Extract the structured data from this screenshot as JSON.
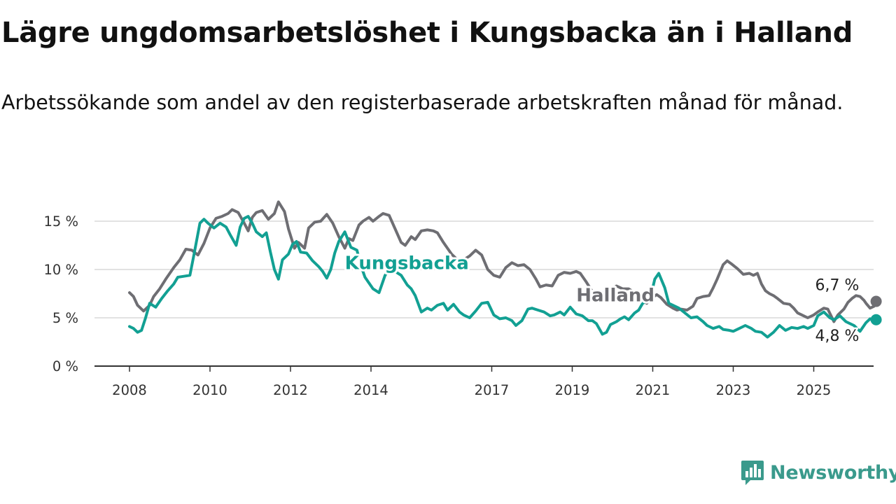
{
  "title": "Lägre ungdomsarbetslöshet i Kungsbacka än i Halland",
  "subtitle": "Arbetssökande som andel av den registerbaserade arbetskraften månad för månad.",
  "brand": {
    "name": "Newsworthy",
    "icon": "newsworthy-logo-icon",
    "color": "#3a9a8c"
  },
  "chart_data": {
    "type": "line",
    "title": "Lägre ungdomsarbetslöshet i Kungsbacka än i Halland",
    "subtitle": "Arbetssökande som andel av den registerbaserade arbetskraften månad för månad.",
    "xlabel": "",
    "ylabel": "",
    "xlim": [
      2008,
      2026.5
    ],
    "ylim": [
      0,
      17
    ],
    "grid": true,
    "legend": "inline labels",
    "x_ticks": [
      {
        "value": 2008,
        "label": "2008"
      },
      {
        "value": 2010,
        "label": "2010"
      },
      {
        "value": 2012,
        "label": "2012"
      },
      {
        "value": 2014,
        "label": "2014"
      },
      {
        "value": 2017,
        "label": "2017"
      },
      {
        "value": 2019,
        "label": "2019"
      },
      {
        "value": 2021,
        "label": "2021"
      },
      {
        "value": 2023,
        "label": "2023"
      },
      {
        "value": 2025,
        "label": "2025"
      }
    ],
    "y_ticks": [
      {
        "value": 0,
        "label": "0 %"
      },
      {
        "value": 5,
        "label": "5 %"
      },
      {
        "value": 10,
        "label": "10 %"
      },
      {
        "value": 15,
        "label": "15 %"
      }
    ],
    "series": [
      {
        "name": "Halland",
        "color": "#6e6e73",
        "label_at": [
          2019.1,
          7.3
        ],
        "end_label": "6,7 %",
        "points": [
          [
            2008.0,
            7.6
          ],
          [
            2008.1,
            7.2
          ],
          [
            2008.2,
            6.3
          ],
          [
            2008.35,
            5.7
          ],
          [
            2008.5,
            6.3
          ],
          [
            2008.6,
            7.2
          ],
          [
            2008.75,
            8.0
          ],
          [
            2008.9,
            9.0
          ],
          [
            2009.1,
            10.2
          ],
          [
            2009.25,
            11.0
          ],
          [
            2009.4,
            12.1
          ],
          [
            2009.55,
            12.0
          ],
          [
            2009.7,
            11.5
          ],
          [
            2009.85,
            12.7
          ],
          [
            2010.0,
            14.3
          ],
          [
            2010.15,
            15.3
          ],
          [
            2010.3,
            15.5
          ],
          [
            2010.45,
            15.8
          ],
          [
            2010.55,
            16.2
          ],
          [
            2010.7,
            15.9
          ],
          [
            2010.85,
            14.8
          ],
          [
            2010.95,
            14.0
          ],
          [
            2011.05,
            15.4
          ],
          [
            2011.15,
            15.9
          ],
          [
            2011.3,
            16.1
          ],
          [
            2011.45,
            15.2
          ],
          [
            2011.6,
            15.8
          ],
          [
            2011.7,
            17.0
          ],
          [
            2011.85,
            16.0
          ],
          [
            2011.95,
            14.2
          ],
          [
            2012.1,
            12.2
          ],
          [
            2012.2,
            12.8
          ],
          [
            2012.35,
            12.2
          ],
          [
            2012.45,
            14.3
          ],
          [
            2012.6,
            14.9
          ],
          [
            2012.75,
            15.0
          ],
          [
            2012.9,
            15.7
          ],
          [
            2013.05,
            14.8
          ],
          [
            2013.2,
            13.4
          ],
          [
            2013.35,
            12.2
          ],
          [
            2013.45,
            13.2
          ],
          [
            2013.55,
            13.0
          ],
          [
            2013.7,
            14.6
          ],
          [
            2013.8,
            15.0
          ],
          [
            2013.95,
            15.4
          ],
          [
            2014.05,
            15.0
          ],
          [
            2014.2,
            15.5
          ],
          [
            2014.3,
            15.8
          ],
          [
            2014.45,
            15.6
          ],
          [
            2014.6,
            14.2
          ],
          [
            2014.75,
            12.8
          ],
          [
            2014.85,
            12.5
          ],
          [
            2015.0,
            13.4
          ],
          [
            2015.1,
            13.1
          ],
          [
            2015.25,
            14.0
          ],
          [
            2015.4,
            14.1
          ],
          [
            2015.55,
            14.0
          ],
          [
            2015.65,
            13.8
          ],
          [
            2015.8,
            12.8
          ],
          [
            2016.0,
            11.6
          ],
          [
            2016.15,
            11.0
          ],
          [
            2016.3,
            11.0
          ],
          [
            2016.45,
            11.4
          ],
          [
            2016.6,
            12.0
          ],
          [
            2016.75,
            11.5
          ],
          [
            2016.9,
            10.0
          ],
          [
            2017.05,
            9.4
          ],
          [
            2017.2,
            9.2
          ],
          [
            2017.35,
            10.2
          ],
          [
            2017.5,
            10.7
          ],
          [
            2017.65,
            10.4
          ],
          [
            2017.8,
            10.5
          ],
          [
            2017.95,
            10.0
          ],
          [
            2018.1,
            9.0
          ],
          [
            2018.2,
            8.2
          ],
          [
            2018.35,
            8.4
          ],
          [
            2018.5,
            8.3
          ],
          [
            2018.65,
            9.4
          ],
          [
            2018.8,
            9.7
          ],
          [
            2018.95,
            9.6
          ],
          [
            2019.1,
            9.8
          ],
          [
            2019.2,
            9.6
          ],
          [
            2019.35,
            8.7
          ],
          [
            2019.5,
            7.7
          ],
          [
            2019.6,
            7.3
          ],
          [
            2019.7,
            7.1
          ],
          [
            2019.8,
            7.7
          ],
          [
            2019.95,
            7.9
          ],
          [
            2020.1,
            8.3
          ],
          [
            2020.25,
            8.0
          ],
          [
            2020.4,
            8.0
          ],
          [
            2020.55,
            7.6
          ],
          [
            2020.65,
            7.0
          ],
          [
            2020.75,
            6.8
          ],
          [
            2020.85,
            6.5
          ],
          [
            2020.95,
            7.0
          ],
          [
            2021.1,
            7.4
          ],
          [
            2021.2,
            7.1
          ],
          [
            2021.35,
            6.4
          ],
          [
            2021.5,
            6.0
          ],
          [
            2021.6,
            5.8
          ],
          [
            2021.7,
            5.9
          ],
          [
            2021.85,
            5.8
          ],
          [
            2022.0,
            6.2
          ],
          [
            2022.1,
            7.0
          ],
          [
            2022.25,
            7.2
          ],
          [
            2022.4,
            7.3
          ],
          [
            2022.5,
            8.1
          ],
          [
            2022.6,
            9.0
          ],
          [
            2022.75,
            10.5
          ],
          [
            2022.85,
            10.9
          ],
          [
            2022.95,
            10.6
          ],
          [
            2023.1,
            10.1
          ],
          [
            2023.25,
            9.5
          ],
          [
            2023.4,
            9.6
          ],
          [
            2023.5,
            9.4
          ],
          [
            2023.6,
            9.6
          ],
          [
            2023.7,
            8.5
          ],
          [
            2023.8,
            7.8
          ],
          [
            2023.9,
            7.5
          ],
          [
            2024.0,
            7.3
          ],
          [
            2024.1,
            7.0
          ],
          [
            2024.25,
            6.5
          ],
          [
            2024.4,
            6.4
          ],
          [
            2024.5,
            6.0
          ],
          [
            2024.6,
            5.5
          ],
          [
            2024.75,
            5.2
          ],
          [
            2024.85,
            5.0
          ],
          [
            2025.0,
            5.3
          ],
          [
            2025.1,
            5.6
          ],
          [
            2025.25,
            6.0
          ],
          [
            2025.35,
            5.9
          ],
          [
            2025.5,
            4.6
          ],
          [
            2025.6,
            5.3
          ],
          [
            2025.75,
            5.9
          ],
          [
            2025.85,
            6.6
          ],
          [
            2025.95,
            7.0
          ],
          [
            2026.05,
            7.3
          ],
          [
            2026.15,
            7.2
          ],
          [
            2026.25,
            6.8
          ],
          [
            2026.3,
            6.5
          ],
          [
            2026.4,
            6.0
          ],
          [
            2026.5,
            6.2
          ],
          [
            2026.55,
            6.7
          ]
        ]
      },
      {
        "name": "Kungsbacka",
        "color": "#12a093",
        "label_at": [
          2013.35,
          10.6
        ],
        "end_label": "4,8 %",
        "points": [
          [
            2008.0,
            4.1
          ],
          [
            2008.1,
            3.9
          ],
          [
            2008.2,
            3.5
          ],
          [
            2008.3,
            3.7
          ],
          [
            2008.4,
            5.0
          ],
          [
            2008.5,
            6.5
          ],
          [
            2008.65,
            6.1
          ],
          [
            2008.8,
            7.0
          ],
          [
            2008.95,
            7.8
          ],
          [
            2009.1,
            8.5
          ],
          [
            2009.2,
            9.2
          ],
          [
            2009.35,
            9.3
          ],
          [
            2009.5,
            9.4
          ],
          [
            2009.6,
            11.5
          ],
          [
            2009.75,
            14.8
          ],
          [
            2009.85,
            15.2
          ],
          [
            2009.95,
            14.8
          ],
          [
            2010.1,
            14.3
          ],
          [
            2010.25,
            14.8
          ],
          [
            2010.4,
            14.4
          ],
          [
            2010.5,
            13.6
          ],
          [
            2010.65,
            12.5
          ],
          [
            2010.75,
            14.4
          ],
          [
            2010.85,
            15.3
          ],
          [
            2010.95,
            15.5
          ],
          [
            2011.05,
            14.8
          ],
          [
            2011.15,
            13.9
          ],
          [
            2011.3,
            13.4
          ],
          [
            2011.4,
            13.8
          ],
          [
            2011.5,
            11.8
          ],
          [
            2011.6,
            10.0
          ],
          [
            2011.7,
            9.0
          ],
          [
            2011.8,
            11.0
          ],
          [
            2011.95,
            11.6
          ],
          [
            2012.05,
            12.6
          ],
          [
            2012.15,
            12.9
          ],
          [
            2012.25,
            11.8
          ],
          [
            2012.4,
            11.7
          ],
          [
            2012.55,
            10.9
          ],
          [
            2012.7,
            10.3
          ],
          [
            2012.8,
            9.8
          ],
          [
            2012.9,
            9.1
          ],
          [
            2013.0,
            10.0
          ],
          [
            2013.1,
            11.7
          ],
          [
            2013.2,
            12.9
          ],
          [
            2013.35,
            13.9
          ],
          [
            2013.5,
            12.3
          ],
          [
            2013.65,
            12.0
          ],
          [
            2013.75,
            10.4
          ],
          [
            2013.85,
            9.2
          ],
          [
            2013.95,
            8.6
          ],
          [
            2014.05,
            8.0
          ],
          [
            2014.2,
            7.6
          ],
          [
            2014.35,
            9.4
          ],
          [
            2014.5,
            10.2
          ],
          [
            2014.6,
            9.8
          ],
          [
            2014.75,
            9.4
          ],
          [
            2014.9,
            8.4
          ],
          [
            2015.0,
            8.0
          ],
          [
            2015.1,
            7.3
          ],
          [
            2015.25,
            5.6
          ],
          [
            2015.4,
            6.0
          ],
          [
            2015.5,
            5.8
          ],
          [
            2015.65,
            6.3
          ],
          [
            2015.8,
            6.5
          ],
          [
            2015.9,
            5.8
          ],
          [
            2016.05,
            6.4
          ],
          [
            2016.2,
            5.6
          ],
          [
            2016.3,
            5.3
          ],
          [
            2016.45,
            5.0
          ],
          [
            2016.6,
            5.7
          ],
          [
            2016.75,
            6.5
          ],
          [
            2016.9,
            6.6
          ],
          [
            2017.05,
            5.3
          ],
          [
            2017.2,
            4.9
          ],
          [
            2017.35,
            5.0
          ],
          [
            2017.5,
            4.7
          ],
          [
            2017.6,
            4.2
          ],
          [
            2017.75,
            4.7
          ],
          [
            2017.9,
            5.9
          ],
          [
            2018.0,
            6.0
          ],
          [
            2018.15,
            5.8
          ],
          [
            2018.3,
            5.6
          ],
          [
            2018.45,
            5.2
          ],
          [
            2018.55,
            5.3
          ],
          [
            2018.7,
            5.6
          ],
          [
            2018.8,
            5.3
          ],
          [
            2018.95,
            6.1
          ],
          [
            2019.1,
            5.4
          ],
          [
            2019.25,
            5.2
          ],
          [
            2019.4,
            4.7
          ],
          [
            2019.5,
            4.7
          ],
          [
            2019.6,
            4.4
          ],
          [
            2019.75,
            3.3
          ],
          [
            2019.85,
            3.5
          ],
          [
            2019.95,
            4.3
          ],
          [
            2020.1,
            4.6
          ],
          [
            2020.2,
            4.9
          ],
          [
            2020.3,
            5.1
          ],
          [
            2020.4,
            4.8
          ],
          [
            2020.55,
            5.5
          ],
          [
            2020.65,
            5.8
          ],
          [
            2020.75,
            6.5
          ],
          [
            2020.85,
            6.7
          ],
          [
            2020.95,
            7.2
          ],
          [
            2021.05,
            9.0
          ],
          [
            2021.15,
            9.6
          ],
          [
            2021.3,
            8.1
          ],
          [
            2021.4,
            6.5
          ],
          [
            2021.5,
            6.3
          ],
          [
            2021.65,
            6.0
          ],
          [
            2021.8,
            5.5
          ],
          [
            2021.95,
            5.0
          ],
          [
            2022.1,
            5.1
          ],
          [
            2022.25,
            4.6
          ],
          [
            2022.35,
            4.2
          ],
          [
            2022.5,
            3.9
          ],
          [
            2022.65,
            4.1
          ],
          [
            2022.75,
            3.8
          ],
          [
            2022.9,
            3.7
          ],
          [
            2023.0,
            3.6
          ],
          [
            2023.15,
            3.9
          ],
          [
            2023.3,
            4.2
          ],
          [
            2023.45,
            3.9
          ],
          [
            2023.55,
            3.6
          ],
          [
            2023.7,
            3.5
          ],
          [
            2023.85,
            3.0
          ],
          [
            2024.0,
            3.5
          ],
          [
            2024.15,
            4.2
          ],
          [
            2024.3,
            3.7
          ],
          [
            2024.45,
            4.0
          ],
          [
            2024.6,
            3.9
          ],
          [
            2024.75,
            4.1
          ],
          [
            2024.85,
            3.9
          ],
          [
            2025.0,
            4.2
          ],
          [
            2025.1,
            5.2
          ],
          [
            2025.25,
            5.6
          ],
          [
            2025.4,
            5.0
          ],
          [
            2025.5,
            4.8
          ],
          [
            2025.65,
            5.2
          ],
          [
            2025.8,
            4.6
          ],
          [
            2025.9,
            4.4
          ],
          [
            2026.0,
            4.2
          ],
          [
            2026.15,
            3.6
          ],
          [
            2026.3,
            4.5
          ],
          [
            2026.4,
            4.9
          ],
          [
            2026.5,
            4.6
          ],
          [
            2026.55,
            4.8
          ]
        ]
      }
    ]
  }
}
